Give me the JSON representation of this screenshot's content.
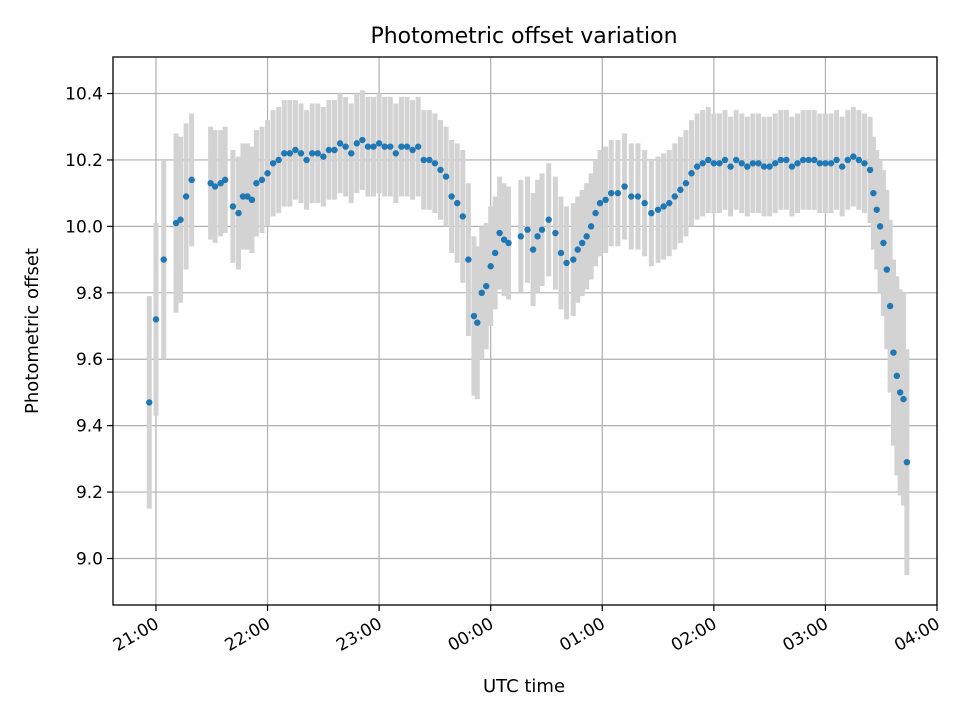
{
  "chart_data": {
    "type": "scatter",
    "title": "Photometric offset variation",
    "xlabel": "UTC time",
    "ylabel": "Photometric offset",
    "x_unit": "hours after 21:00 UTC",
    "xlim": [
      -0.385,
      7.0
    ],
    "ylim": [
      8.86,
      10.51
    ],
    "x_ticks": [
      {
        "label": "21:00",
        "value": 0
      },
      {
        "label": "22:00",
        "value": 1
      },
      {
        "label": "23:00",
        "value": 2
      },
      {
        "label": "00:00",
        "value": 3
      },
      {
        "label": "01:00",
        "value": 4
      },
      {
        "label": "02:00",
        "value": 5
      },
      {
        "label": "03:00",
        "value": 6
      },
      {
        "label": "04:00",
        "value": 7
      }
    ],
    "y_ticks": [
      {
        "label": "9.0",
        "value": 9.0
      },
      {
        "label": "9.2",
        "value": 9.2
      },
      {
        "label": "9.4",
        "value": 9.4
      },
      {
        "label": "9.6",
        "value": 9.6
      },
      {
        "label": "9.8",
        "value": 9.8
      },
      {
        "label": "10.0",
        "value": 10.0
      },
      {
        "label": "10.2",
        "value": 10.2
      },
      {
        "label": "10.4",
        "value": 10.4
      }
    ],
    "grid": true,
    "colors": {
      "points": "#1f77b4",
      "errorbars": "#d3d3d3",
      "grid": "#b0b0b0"
    },
    "x": [
      -0.06,
      0.0,
      0.07,
      0.18,
      0.22,
      0.27,
      0.32,
      0.49,
      0.53,
      0.58,
      0.62,
      0.69,
      0.74,
      0.78,
      0.82,
      0.86,
      0.9,
      0.95,
      1.0,
      1.05,
      1.1,
      1.15,
      1.2,
      1.25,
      1.3,
      1.35,
      1.4,
      1.45,
      1.5,
      1.55,
      1.6,
      1.65,
      1.7,
      1.75,
      1.8,
      1.85,
      1.9,
      1.95,
      2.0,
      2.05,
      2.1,
      2.15,
      2.2,
      2.25,
      2.3,
      2.35,
      2.4,
      2.45,
      2.5,
      2.55,
      2.6,
      2.65,
      2.7,
      2.75,
      2.8,
      2.85,
      2.88,
      2.92,
      2.96,
      3.0,
      3.04,
      3.08,
      3.12,
      3.16,
      3.27,
      3.33,
      3.38,
      3.42,
      3.46,
      3.52,
      3.58,
      3.63,
      3.68,
      3.74,
      3.78,
      3.82,
      3.86,
      3.9,
      3.94,
      3.98,
      4.03,
      4.08,
      4.14,
      4.2,
      4.26,
      4.32,
      4.38,
      4.44,
      4.5,
      4.55,
      4.6,
      4.65,
      4.7,
      4.75,
      4.8,
      4.85,
      4.9,
      4.95,
      5.0,
      5.05,
      5.1,
      5.15,
      5.2,
      5.25,
      5.3,
      5.35,
      5.4,
      5.45,
      5.5,
      5.55,
      5.6,
      5.65,
      5.7,
      5.75,
      5.8,
      5.85,
      5.9,
      5.95,
      6.0,
      6.05,
      6.1,
      6.15,
      6.2,
      6.25,
      6.3,
      6.35,
      6.4,
      6.43,
      6.46,
      6.49,
      6.52,
      6.55,
      6.58,
      6.61,
      6.64,
      6.67,
      6.7,
      6.73
    ],
    "y": [
      9.47,
      9.72,
      9.9,
      10.01,
      10.02,
      10.09,
      10.14,
      10.13,
      10.12,
      10.13,
      10.14,
      10.06,
      10.04,
      10.09,
      10.09,
      10.08,
      10.13,
      10.14,
      10.16,
      10.19,
      10.2,
      10.22,
      10.22,
      10.23,
      10.22,
      10.2,
      10.22,
      10.22,
      10.21,
      10.23,
      10.23,
      10.25,
      10.24,
      10.22,
      10.25,
      10.26,
      10.24,
      10.24,
      10.25,
      10.24,
      10.24,
      10.22,
      10.24,
      10.24,
      10.23,
      10.24,
      10.2,
      10.2,
      10.19,
      10.17,
      10.15,
      10.09,
      10.07,
      10.03,
      9.9,
      9.73,
      9.71,
      9.8,
      9.82,
      9.88,
      9.92,
      9.98,
      9.96,
      9.95,
      9.97,
      9.99,
      9.93,
      9.97,
      9.99,
      10.02,
      9.98,
      9.92,
      9.89,
      9.9,
      9.93,
      9.95,
      9.97,
      10.0,
      10.04,
      10.07,
      10.08,
      10.1,
      10.1,
      10.12,
      10.09,
      10.09,
      10.07,
      10.04,
      10.05,
      10.06,
      10.07,
      10.09,
      10.11,
      10.13,
      10.16,
      10.18,
      10.19,
      10.2,
      10.19,
      10.19,
      10.2,
      10.18,
      10.2,
      10.19,
      10.18,
      10.19,
      10.19,
      10.18,
      10.18,
      10.19,
      10.2,
      10.2,
      10.18,
      10.19,
      10.2,
      10.2,
      10.2,
      10.19,
      10.19,
      10.19,
      10.2,
      10.18,
      10.2,
      10.21,
      10.2,
      10.19,
      10.17,
      10.1,
      10.05,
      10.0,
      9.95,
      9.87,
      9.76,
      9.62,
      9.55,
      9.5,
      9.48,
      9.29
    ],
    "err": [
      0.32,
      0.29,
      0.3,
      0.27,
      0.25,
      0.22,
      0.2,
      0.17,
      0.17,
      0.16,
      0.16,
      0.17,
      0.17,
      0.16,
      0.16,
      0.16,
      0.16,
      0.16,
      0.16,
      0.16,
      0.16,
      0.16,
      0.16,
      0.15,
      0.15,
      0.15,
      0.15,
      0.15,
      0.15,
      0.15,
      0.15,
      0.15,
      0.15,
      0.15,
      0.15,
      0.15,
      0.15,
      0.15,
      0.15,
      0.15,
      0.15,
      0.15,
      0.15,
      0.15,
      0.15,
      0.15,
      0.15,
      0.15,
      0.15,
      0.15,
      0.15,
      0.17,
      0.18,
      0.2,
      0.23,
      0.24,
      0.23,
      0.2,
      0.19,
      0.18,
      0.17,
      0.17,
      0.17,
      0.17,
      0.17,
      0.16,
      0.17,
      0.17,
      0.17,
      0.17,
      0.17,
      0.17,
      0.17,
      0.17,
      0.16,
      0.16,
      0.16,
      0.16,
      0.16,
      0.16,
      0.16,
      0.16,
      0.16,
      0.16,
      0.16,
      0.16,
      0.16,
      0.16,
      0.16,
      0.16,
      0.16,
      0.16,
      0.16,
      0.16,
      0.16,
      0.16,
      0.16,
      0.16,
      0.15,
      0.15,
      0.15,
      0.15,
      0.15,
      0.15,
      0.15,
      0.15,
      0.15,
      0.15,
      0.15,
      0.15,
      0.15,
      0.15,
      0.15,
      0.15,
      0.15,
      0.15,
      0.15,
      0.15,
      0.15,
      0.15,
      0.15,
      0.15,
      0.15,
      0.15,
      0.15,
      0.15,
      0.16,
      0.17,
      0.18,
      0.2,
      0.22,
      0.24,
      0.26,
      0.28,
      0.3,
      0.31,
      0.32,
      0.34
    ]
  }
}
